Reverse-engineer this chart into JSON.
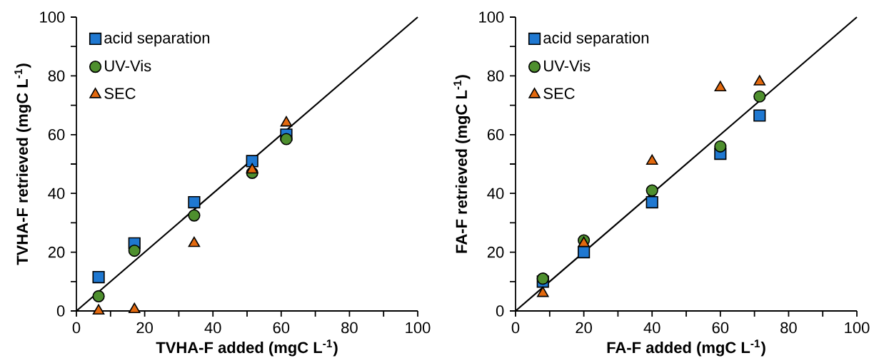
{
  "chart_data": [
    {
      "type": "scatter",
      "xlabel": "TVHA-F added (mgC L$^{-1}$)",
      "ylabel": "TVHA-F retrieved (mgC L$^{-1}$)",
      "legend": "top left",
      "grid": false,
      "xlim": [
        0,
        100
      ],
      "ylim": [
        0,
        100
      ],
      "xticks": [
        0,
        {
          "value": 10,
          "label": null
        },
        20,
        {
          "value": 30,
          "label": null
        },
        40,
        {
          "value": 50,
          "label": null
        },
        60,
        {
          "value": 70,
          "label": null
        },
        80,
        {
          "value": 90,
          "label": null
        },
        100
      ],
      "yticks": [
        0,
        {
          "value": 10,
          "label": null
        },
        20,
        {
          "value": 30,
          "label": null
        },
        40,
        {
          "value": 50,
          "label": null
        },
        60,
        {
          "value": 70,
          "label": null
        },
        80,
        {
          "value": 90,
          "label": null
        },
        100
      ],
      "series": [
        {
          "type": "line",
          "color": "#000000",
          "x": [
            0,
            100
          ],
          "values": [
            0,
            100
          ],
          "marker": "none"
        },
        {
          "name": "acid separation",
          "color": "#1f78d1",
          "marker": "square",
          "x": [
            6.5,
            17,
            34.5,
            51.5,
            61.5
          ],
          "values": [
            11.5,
            23,
            37,
            51,
            60
          ]
        },
        {
          "name": "UV-Vis",
          "color": "#4e8f2e",
          "marker": "circle",
          "x": [
            6.5,
            17,
            34.5,
            51.5,
            61.5
          ],
          "values": [
            5,
            20.5,
            32.5,
            47,
            58.5
          ]
        },
        {
          "name": "SEC",
          "color": "#e3690e",
          "marker": "triangle",
          "x": [
            6.5,
            17,
            34.5,
            51.5,
            61.5
          ],
          "values": [
            0,
            0.5,
            23,
            48,
            64
          ]
        }
      ]
    },
    {
      "type": "scatter",
      "xlabel": "FA-F added (mgC L$^{-1}$)",
      "ylabel": "FA-F retrieved (mgC L$^{-1}$)",
      "legend": "top left",
      "grid": false,
      "xlim": [
        0,
        100
      ],
      "ylim": [
        0,
        100
      ],
      "xticks": [
        0,
        {
          "value": 10,
          "label": null
        },
        20,
        {
          "value": 30,
          "label": null
        },
        40,
        {
          "value": 50,
          "label": null
        },
        60,
        {
          "value": 70,
          "label": null
        },
        80,
        {
          "value": 90,
          "label": null
        },
        100
      ],
      "yticks": [
        0,
        {
          "value": 10,
          "label": null
        },
        20,
        {
          "value": 30,
          "label": null
        },
        40,
        {
          "value": 50,
          "label": null
        },
        60,
        {
          "value": 70,
          "label": null
        },
        80,
        {
          "value": 90,
          "label": null
        },
        100
      ],
      "series": [
        {
          "type": "line",
          "color": "#000000",
          "x": [
            0,
            100
          ],
          "values": [
            0,
            100
          ],
          "marker": "none"
        },
        {
          "name": "acid separation",
          "color": "#1f78d1",
          "marker": "square",
          "x": [
            8,
            20,
            40,
            60,
            71.5
          ],
          "values": [
            10,
            20,
            37,
            53.5,
            66.5
          ]
        },
        {
          "name": "UV-Vis",
          "color": "#4e8f2e",
          "marker": "circle",
          "x": [
            8,
            20,
            40,
            60,
            71.5
          ],
          "values": [
            11,
            24,
            41,
            56,
            73
          ]
        },
        {
          "name": "SEC",
          "color": "#e3690e",
          "marker": "triangle",
          "x": [
            8,
            20,
            40,
            60,
            71.5
          ],
          "values": [
            6,
            23,
            51,
            76,
            78
          ]
        }
      ]
    }
  ]
}
